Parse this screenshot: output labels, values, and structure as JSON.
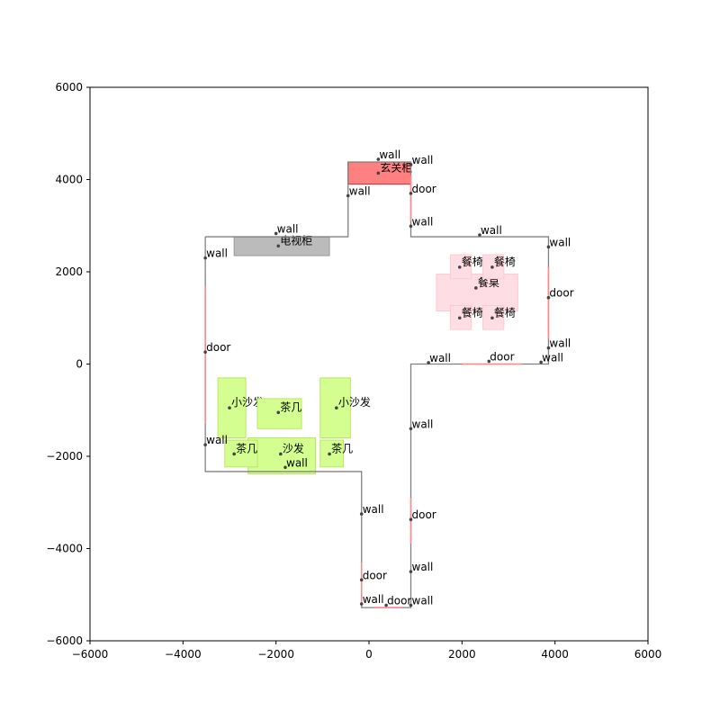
{
  "chart_data": {
    "type": "floorplan",
    "xlim": [
      -6000,
      6000
    ],
    "ylim": [
      -6000,
      6000
    ],
    "x_ticks": [
      {
        "v": -6000,
        "label": "−6000"
      },
      {
        "v": -4000,
        "label": "−4000"
      },
      {
        "v": -2000,
        "label": "−2000"
      },
      {
        "v": 0,
        "label": "0"
      },
      {
        "v": 2000,
        "label": "2000"
      },
      {
        "v": 4000,
        "label": "4000"
      },
      {
        "v": 6000,
        "label": "6000"
      }
    ],
    "y_ticks": [
      {
        "v": 6000,
        "label": "6000"
      },
      {
        "v": 4000,
        "label": "4000"
      },
      {
        "v": 2000,
        "label": "2000"
      },
      {
        "v": 0,
        "label": "0"
      },
      {
        "v": -2000,
        "label": "−2000"
      },
      {
        "v": -4000,
        "label": "−4000"
      },
      {
        "v": -6000,
        "label": "−6000"
      }
    ],
    "wall_outline": [
      [
        -3520,
        2760
      ],
      [
        -450,
        2760
      ],
      [
        -450,
        4380
      ],
      [
        900,
        4380
      ],
      [
        900,
        2760
      ],
      [
        3860,
        2760
      ],
      [
        3860,
        0
      ],
      [
        900,
        0
      ],
      [
        900,
        -5280
      ],
      [
        -160,
        -5280
      ],
      [
        -160,
        -2330
      ],
      [
        -3520,
        -2330
      ],
      [
        -3520,
        2760
      ]
    ],
    "doors": [
      {
        "x1": -3520,
        "y1": 1700,
        "x2": -3520,
        "y2": -1300
      },
      {
        "x1": 900,
        "y1": 4100,
        "x2": 900,
        "y2": 3100
      },
      {
        "x1": 3860,
        "y1": 2100,
        "x2": 3860,
        "y2": 550
      },
      {
        "x1": 2000,
        "y1": 0,
        "x2": 3300,
        "y2": 0
      },
      {
        "x1": 900,
        "y1": -2900,
        "x2": 900,
        "y2": -3900
      },
      {
        "x1": -160,
        "y1": -4300,
        "x2": -160,
        "y2": -5200
      },
      {
        "x1": 100,
        "y1": -5280,
        "x2": 700,
        "y2": -5280
      }
    ],
    "furniture": [
      {
        "label": "玄关柜",
        "x": -450,
        "y": 3900,
        "w": 1350,
        "h": 480,
        "fill": "#ff8080",
        "stroke": "#d03030",
        "lx": 200,
        "ly": 4140
      },
      {
        "label": "电视柜",
        "x": -2900,
        "y": 2350,
        "w": 2050,
        "h": 410,
        "fill": "#bbbbbb",
        "stroke": "#999999",
        "lx": -1950,
        "ly": 2560
      },
      {
        "label": "餐桌",
        "x": 1450,
        "y": 1150,
        "w": 1750,
        "h": 800,
        "fill": "#ffdde5",
        "stroke": "#ffc8d4",
        "lx": 2300,
        "ly": 1650
      },
      {
        "label": "餐椅",
        "x": 1750,
        "y": 1850,
        "w": 450,
        "h": 520,
        "fill": "#ffdde5",
        "stroke": "#ffc8d4",
        "lx": 1950,
        "ly": 2100
      },
      {
        "label": "餐椅",
        "x": 2450,
        "y": 1850,
        "w": 450,
        "h": 520,
        "fill": "#ffdde5",
        "stroke": "#ffc8d4",
        "lx": 2650,
        "ly": 2100
      },
      {
        "label": "餐椅",
        "x": 1750,
        "y": 750,
        "w": 450,
        "h": 520,
        "fill": "#ffdde5",
        "stroke": "#ffc8d4",
        "lx": 1950,
        "ly": 1000
      },
      {
        "label": "餐椅",
        "x": 2450,
        "y": 750,
        "w": 450,
        "h": 520,
        "fill": "#ffdde5",
        "stroke": "#ffc8d4",
        "lx": 2650,
        "ly": 1000
      },
      {
        "label": "小沙发",
        "x": -3250,
        "y": -1600,
        "w": 600,
        "h": 1300,
        "fill": "#d4ff90",
        "stroke": "#b8e860",
        "lx": -3000,
        "ly": -950
      },
      {
        "label": "小沙发",
        "x": -1050,
        "y": -1600,
        "w": 650,
        "h": 1300,
        "fill": "#d4ff90",
        "stroke": "#b8e860",
        "lx": -700,
        "ly": -950
      },
      {
        "label": "茶几",
        "x": -2400,
        "y": -1400,
        "w": 950,
        "h": 650,
        "fill": "#d4ff90",
        "stroke": "#b8e860",
        "lx": -1950,
        "ly": -1050
      },
      {
        "label": "沙发",
        "x": -2600,
        "y": -2380,
        "w": 1450,
        "h": 780,
        "fill": "#d4ff90",
        "stroke": "#b8e860",
        "lx": -1900,
        "ly": -1950
      },
      {
        "label": "茶几",
        "x": -3100,
        "y": -2230,
        "w": 700,
        "h": 580,
        "fill": "#d4ff90",
        "stroke": "#b8e860",
        "lx": -2900,
        "ly": -1950
      },
      {
        "label": "茶几",
        "x": -1050,
        "y": -2230,
        "w": 500,
        "h": 580,
        "fill": "#d4ff90",
        "stroke": "#b8e860",
        "lx": -850,
        "ly": -1950
      }
    ],
    "labels": [
      {
        "text": "wall",
        "x": 200,
        "y": 4440
      },
      {
        "text": "wall",
        "x": 900,
        "y": 4320
      },
      {
        "text": "wall",
        "x": -450,
        "y": 3650
      },
      {
        "text": "door",
        "x": 900,
        "y": 3700
      },
      {
        "text": "wall",
        "x": 900,
        "y": 2990
      },
      {
        "text": "wall",
        "x": -2000,
        "y": 2830
      },
      {
        "text": "wall",
        "x": 2380,
        "y": 2800
      },
      {
        "text": "wall",
        "x": 3860,
        "y": 2540
      },
      {
        "text": "wall",
        "x": -3520,
        "y": 2300
      },
      {
        "text": "door",
        "x": 3860,
        "y": 1440
      },
      {
        "text": "door",
        "x": -3520,
        "y": 260
      },
      {
        "text": "wall",
        "x": 3860,
        "y": 350
      },
      {
        "text": "wall",
        "x": 1280,
        "y": 30
      },
      {
        "text": "door",
        "x": 2580,
        "y": 60
      },
      {
        "text": "wall",
        "x": 3700,
        "y": 40
      },
      {
        "text": "wall",
        "x": 900,
        "y": -1400
      },
      {
        "text": "wall",
        "x": -3520,
        "y": -1750
      },
      {
        "text": "wall",
        "x": -1800,
        "y": -2240
      },
      {
        "text": "wall",
        "x": -160,
        "y": -3250
      },
      {
        "text": "door",
        "x": 900,
        "y": -3370
      },
      {
        "text": "wall",
        "x": 900,
        "y": -4500
      },
      {
        "text": "door",
        "x": -160,
        "y": -4680
      },
      {
        "text": "wall",
        "x": -160,
        "y": -5200
      },
      {
        "text": "door",
        "x": 370,
        "y": -5230
      },
      {
        "text": "wall",
        "x": 900,
        "y": -5230
      }
    ],
    "colors": {
      "wall": "#808080",
      "door": "#ff8a8a",
      "marker": "#444444"
    }
  }
}
